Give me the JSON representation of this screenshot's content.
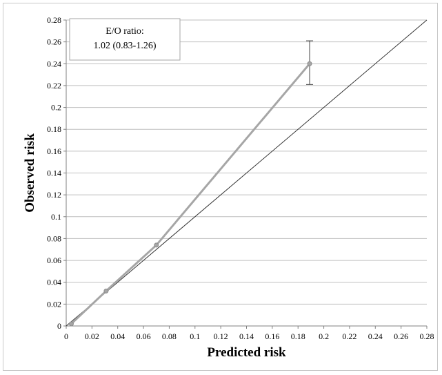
{
  "chart_data": {
    "type": "line",
    "xlabel": "Predicted risk",
    "ylabel": "Observed risk",
    "xlim": [
      0,
      0.28
    ],
    "ylim": [
      0,
      0.28
    ],
    "xticks": [
      "0",
      "0.02",
      "0.04",
      "0.06",
      "0.08",
      "0.1",
      "0.12",
      "0.14",
      "0.16",
      "0.18",
      "0.2",
      "0.22",
      "0.24",
      "0.26",
      "0.28"
    ],
    "yticks": [
      "0",
      "0.02",
      "0.04",
      "0.06",
      "0.08",
      "0.1",
      "0.12",
      "0.14",
      "0.16",
      "0.18",
      "0.2",
      "0.22",
      "0.24",
      "0.26",
      "0.28"
    ],
    "grid": "horizontal",
    "series": [
      {
        "color": "#a6a6a6",
        "x": [
          0.004,
          0.031,
          0.07,
          0.189
        ],
        "y": [
          0.002,
          0.032,
          0.074,
          0.24
        ],
        "error_bars": [
          null,
          null,
          null,
          {
            "low": 0.221,
            "high": 0.261
          }
        ]
      }
    ],
    "reference_line": {
      "from": [
        0,
        0
      ],
      "to": [
        0.28,
        0.28
      ],
      "color": "#333333"
    },
    "annotation": {
      "lines": [
        "E/O ratio:",
        "1.02 (0.83-1.26)"
      ],
      "position": "top-left"
    }
  }
}
